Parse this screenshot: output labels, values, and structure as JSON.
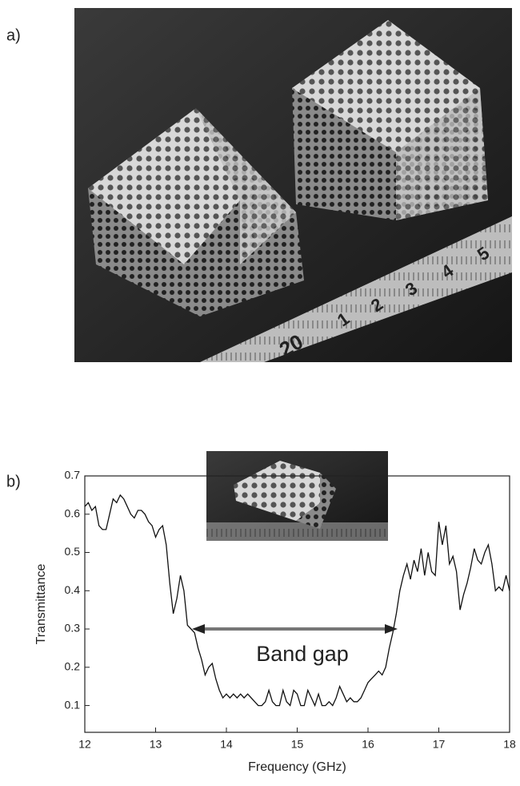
{
  "panel_labels": [
    "a)",
    "b)"
  ],
  "photo": {
    "ruler_labels": [
      "20",
      "1",
      "2",
      "3",
      "4",
      "5"
    ]
  },
  "chart_data": {
    "type": "line",
    "x_label": "Frequency (GHz)",
    "y_label": "Transmittance",
    "annotation": "Band gap",
    "xlim": [
      12,
      18
    ],
    "xticks": [
      12,
      13,
      14,
      15,
      16,
      17,
      18
    ],
    "ylim": [
      0.03,
      0.7
    ],
    "yticks": [
      0.1,
      0.2,
      0.3,
      0.4,
      0.5,
      0.6,
      0.7
    ],
    "series": [
      {
        "color": "#111111",
        "x": [
          12.0,
          12.05,
          12.1,
          12.15,
          12.2,
          12.25,
          12.3,
          12.35,
          12.4,
          12.45,
          12.5,
          12.55,
          12.6,
          12.65,
          12.7,
          12.75,
          12.8,
          12.85,
          12.9,
          12.95,
          13.0,
          13.05,
          13.1,
          13.15,
          13.2,
          13.25,
          13.3,
          13.35,
          13.4,
          13.45,
          13.5,
          13.55,
          13.6,
          13.65,
          13.7,
          13.75,
          13.8,
          13.85,
          13.9,
          13.95,
          14.0,
          14.05,
          14.1,
          14.15,
          14.2,
          14.25,
          14.3,
          14.35,
          14.4,
          14.45,
          14.5,
          14.55,
          14.6,
          14.65,
          14.7,
          14.75,
          14.8,
          14.85,
          14.9,
          14.95,
          15.0,
          15.05,
          15.1,
          15.15,
          15.2,
          15.25,
          15.3,
          15.35,
          15.4,
          15.45,
          15.5,
          15.55,
          15.6,
          15.65,
          15.7,
          15.75,
          15.8,
          15.85,
          15.9,
          15.95,
          16.0,
          16.05,
          16.1,
          16.15,
          16.2,
          16.25,
          16.3,
          16.35,
          16.4,
          16.45,
          16.5,
          16.55,
          16.6,
          16.65,
          16.7,
          16.75,
          16.8,
          16.85,
          16.9,
          16.95,
          17.0,
          17.05,
          17.1,
          17.15,
          17.2,
          17.25,
          17.3,
          17.35,
          17.4,
          17.45,
          17.5,
          17.55,
          17.6,
          17.65,
          17.7,
          17.75,
          17.8,
          17.85,
          17.9,
          17.95,
          18.0
        ],
        "values": [
          0.62,
          0.63,
          0.61,
          0.62,
          0.57,
          0.56,
          0.56,
          0.6,
          0.64,
          0.63,
          0.65,
          0.64,
          0.62,
          0.6,
          0.59,
          0.61,
          0.61,
          0.6,
          0.58,
          0.57,
          0.54,
          0.56,
          0.57,
          0.52,
          0.42,
          0.34,
          0.38,
          0.44,
          0.4,
          0.31,
          0.3,
          0.29,
          0.25,
          0.22,
          0.18,
          0.2,
          0.21,
          0.17,
          0.14,
          0.12,
          0.13,
          0.12,
          0.13,
          0.12,
          0.13,
          0.12,
          0.13,
          0.12,
          0.11,
          0.1,
          0.1,
          0.11,
          0.14,
          0.11,
          0.1,
          0.1,
          0.14,
          0.11,
          0.1,
          0.14,
          0.13,
          0.1,
          0.1,
          0.14,
          0.12,
          0.1,
          0.13,
          0.1,
          0.1,
          0.11,
          0.1,
          0.12,
          0.15,
          0.13,
          0.11,
          0.12,
          0.11,
          0.11,
          0.12,
          0.14,
          0.16,
          0.17,
          0.18,
          0.19,
          0.18,
          0.2,
          0.25,
          0.29,
          0.34,
          0.4,
          0.44,
          0.47,
          0.43,
          0.48,
          0.45,
          0.51,
          0.44,
          0.5,
          0.45,
          0.44,
          0.58,
          0.52,
          0.57,
          0.47,
          0.49,
          0.45,
          0.35,
          0.39,
          0.42,
          0.46,
          0.51,
          0.48,
          0.47,
          0.5,
          0.52,
          0.47,
          0.4,
          0.41,
          0.4,
          0.44,
          0.4
        ]
      }
    ]
  }
}
